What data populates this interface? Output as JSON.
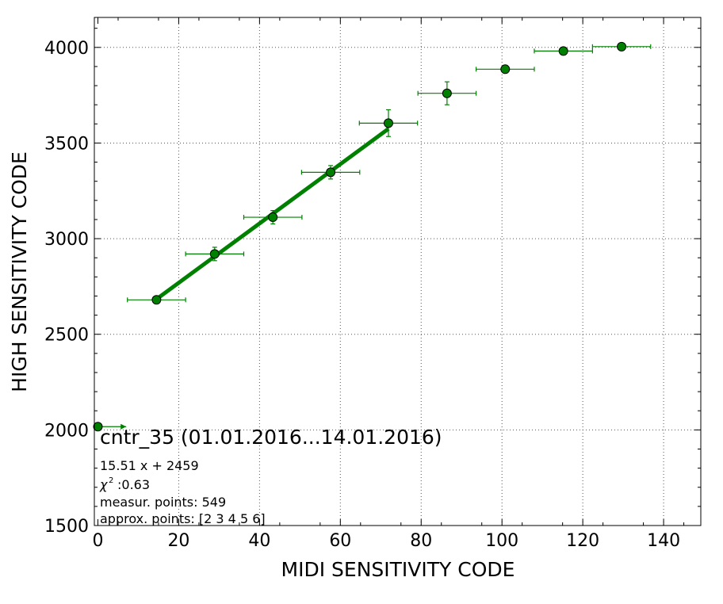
{
  "chart_data": {
    "type": "scatter",
    "title": "",
    "xlabel": "MIDI SENSITIVITY CODE",
    "ylabel": "HIGH SENSITIVITY CODE",
    "xlim": [
      0,
      150
    ],
    "ylim": [
      1500,
      4150
    ],
    "x_ticks": [
      0,
      20,
      40,
      60,
      80,
      100,
      120,
      140
    ],
    "y_ticks": [
      1500,
      2000,
      2500,
      3000,
      3500,
      4000
    ],
    "grid": true,
    "colors": {
      "series": "#008000",
      "marker_edge": "#000000"
    },
    "points": [
      {
        "x": 0,
        "y": 2017,
        "xerr": 7,
        "yerr": 0
      },
      {
        "x": 14.5,
        "y": 2680,
        "xerr": 7.2,
        "yerr": 12
      },
      {
        "x": 28.9,
        "y": 2920,
        "xerr": 7.2,
        "yerr": 35
      },
      {
        "x": 43.3,
        "y": 3112,
        "xerr": 7.2,
        "yerr": 35
      },
      {
        "x": 57.6,
        "y": 3347,
        "xerr": 7.2,
        "yerr": 35
      },
      {
        "x": 71.9,
        "y": 3604,
        "xerr": 7.2,
        "yerr": 70
      },
      {
        "x": 86.4,
        "y": 3760,
        "xerr": 7.2,
        "yerr": 60
      },
      {
        "x": 100.8,
        "y": 3886,
        "xerr": 7.2,
        "yerr": 20
      },
      {
        "x": 115.2,
        "y": 3981,
        "xerr": 7.2,
        "yerr": 12
      },
      {
        "x": 129.6,
        "y": 4004,
        "xerr": 7.2,
        "yerr": 10
      }
    ],
    "fit": {
      "slope": 15.51,
      "intercept": 2459,
      "x_range": [
        14.5,
        71.9
      ]
    },
    "annotations": {
      "label": "cntr_35 (01.01.2016...14.01.2016)",
      "equation": "15.51 x + 2459",
      "chi2": ":0.63",
      "measur_points": "measur. points: 549",
      "approx_points": "approx. points: [2 3 4 5 6]"
    }
  }
}
